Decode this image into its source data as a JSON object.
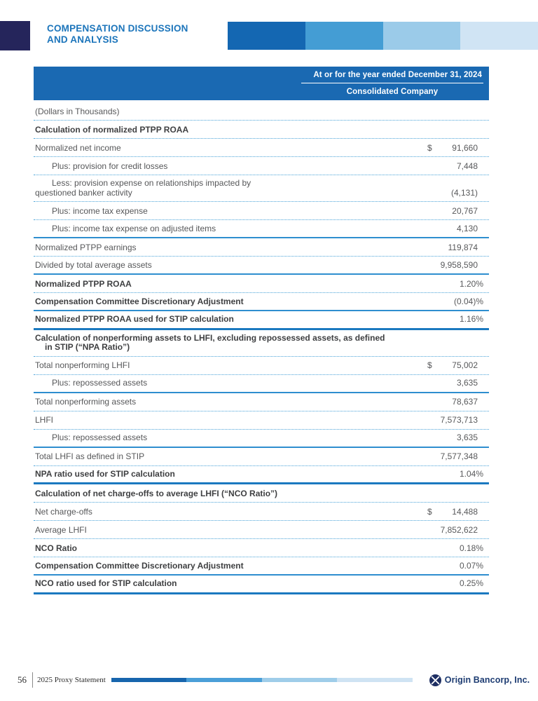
{
  "header": {
    "title_line1": "COMPENSATION DISCUSSION",
    "title_line2": "AND ANALYSIS"
  },
  "table": {
    "period_header": "At or for the year ended December 31, 2024",
    "column_header": "Consolidated Company",
    "units_note": "(Dollars in Thousands)",
    "rows": [
      {
        "type": "section",
        "label": "Calculation of normalized PTPP ROAA",
        "border": "dotted"
      },
      {
        "type": "item",
        "label": "Normalized net income",
        "dollar": "$",
        "value": "91,660",
        "border": "dotted"
      },
      {
        "type": "item",
        "indent": true,
        "label": "Plus: provision for credit losses",
        "value": "7,448",
        "border": "dotted"
      },
      {
        "type": "item",
        "indent": true,
        "label": "Less: provision expense on relationships impacted by",
        "label2": "questioned banker activity",
        "value": "(4,131)",
        "border": "dotted"
      },
      {
        "type": "item",
        "indent": true,
        "label": "Plus: income tax expense",
        "value": "20,767",
        "border": "dotted"
      },
      {
        "type": "item",
        "indent": true,
        "label": "Plus: income tax expense on adjusted items",
        "value": "4,130",
        "border": "solid"
      },
      {
        "type": "item",
        "label": "Normalized PTPP earnings",
        "value": "119,874",
        "border": "dotted"
      },
      {
        "type": "item",
        "label": "Divided by total average assets",
        "value": "9,958,590",
        "border": "solid"
      },
      {
        "type": "total",
        "label": "Normalized PTPP ROAA",
        "value": "1.20%",
        "percent": true,
        "border": "dotted"
      },
      {
        "type": "total",
        "label": "Compensation Committee Discretionary Adjustment",
        "value": "(0.04)%",
        "percent": true,
        "border": "solid"
      },
      {
        "type": "total",
        "label": "Normalized PTPP ROAA used for STIP calculation",
        "value": "1.16%",
        "percent": true,
        "border": "thick"
      },
      {
        "type": "section",
        "label": "Calculation of nonperforming assets to LHFI, excluding repossessed assets, as defined",
        "label2": "in STIP (“NPA Ratio”)",
        "border": "dotted"
      },
      {
        "type": "item",
        "label": "Total nonperforming LHFI",
        "dollar": "$",
        "value": "75,002",
        "border": "dotted"
      },
      {
        "type": "item",
        "indent": true,
        "label": "Plus: repossessed assets",
        "value": "3,635",
        "border": "solid"
      },
      {
        "type": "item",
        "label": "Total nonperforming assets",
        "value": "78,637",
        "border": "dotted"
      },
      {
        "type": "item",
        "label": "LHFI",
        "value": "7,573,713",
        "border": "dotted"
      },
      {
        "type": "item",
        "indent": true,
        "label": "Plus: repossessed assets",
        "value": "3,635",
        "border": "solid"
      },
      {
        "type": "item",
        "label": "Total LHFI as defined in STIP",
        "value": "7,577,348",
        "border": "dotted"
      },
      {
        "type": "total",
        "label": "NPA ratio used for STIP calculation",
        "value": "1.04%",
        "percent": true,
        "border": "thick"
      },
      {
        "type": "section",
        "label": "Calculation of net charge-offs to average LHFI (“NCO Ratio”)",
        "border": "dotted"
      },
      {
        "type": "item",
        "label": "Net charge-offs",
        "dollar": "$",
        "value": "14,488",
        "border": "dotted"
      },
      {
        "type": "item",
        "label": "Average LHFI",
        "value": "7,852,622",
        "border": "dotted"
      },
      {
        "type": "total",
        "label": "NCO Ratio",
        "value": "0.18%",
        "percent": true,
        "border": "dotted"
      },
      {
        "type": "total",
        "label": "Compensation Committee Discretionary Adjustment",
        "value": "0.07%",
        "percent": true,
        "border": "solid"
      },
      {
        "type": "total",
        "label": "NCO ratio used for STIP calculation",
        "value": "0.25%",
        "percent": true,
        "border": "thick"
      }
    ]
  },
  "footer": {
    "page_number": "56",
    "doc_title": "2025 Proxy Statement",
    "company_name": "Origin Bancorp, Inc."
  },
  "colors": {
    "accent_blue": "#1c75bb",
    "banner_blue": "#1a69b2",
    "navy_square": "#25255b",
    "header_gradient": [
      "#1467b2",
      "#449dd4",
      "#9bcbe9",
      "#d0e4f4"
    ],
    "footer_gradient": [
      "#1765ad",
      "#4a9fd8",
      "#9fcde9",
      "#cfe3f3"
    ],
    "rule_dotted": "#4aa3d8",
    "rule_solid": "#2e8ecf",
    "rule_thick": "#1b79c0",
    "text_gray": "#58595b",
    "text_dark": "#3e3f41",
    "company_navy": "#1d3c72"
  }
}
